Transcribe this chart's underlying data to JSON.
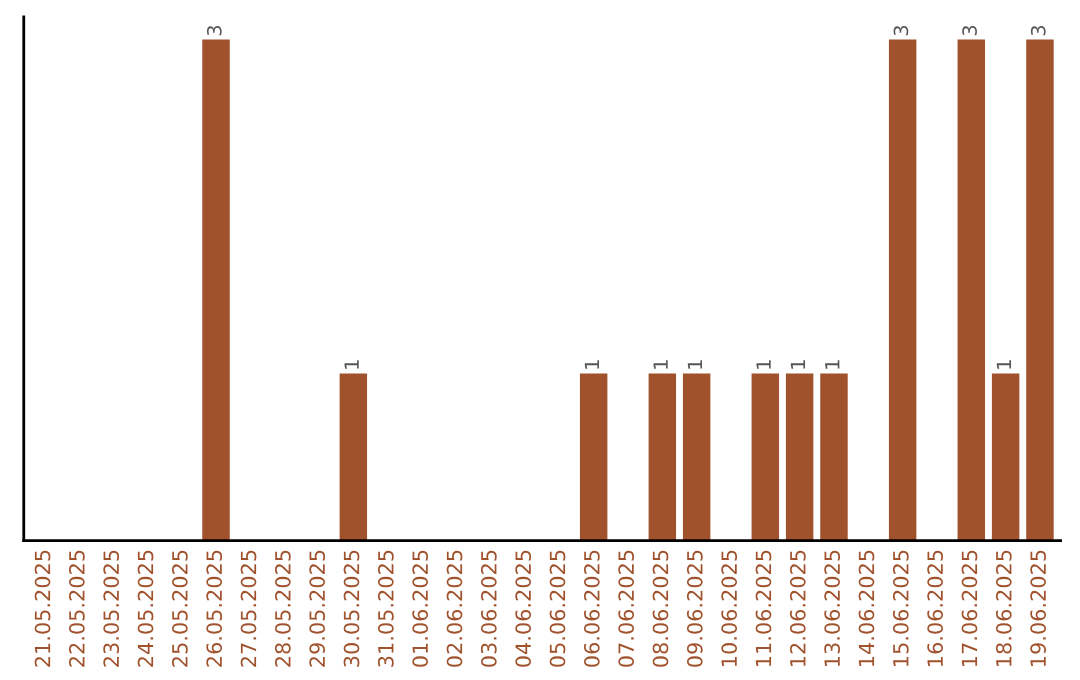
{
  "chart_data": {
    "type": "bar",
    "categories": [
      "21.05.2025",
      "22.05.2025",
      "23.05.2025",
      "24.05.2025",
      "25.05.2025",
      "26.05.2025",
      "27.05.2025",
      "28.05.2025",
      "29.05.2025",
      "30.05.2025",
      "31.05.2025",
      "01.06.2025",
      "02.06.2025",
      "03.06.2025",
      "04.06.2025",
      "05.06.2025",
      "06.06.2025",
      "07.06.2025",
      "08.06.2025",
      "09.06.2025",
      "10.06.2025",
      "11.06.2025",
      "12.06.2025",
      "13.06.2025",
      "14.06.2025",
      "15.06.2025",
      "16.06.2025",
      "17.06.2025",
      "18.06.2025",
      "19.06.2025"
    ],
    "values": [
      0,
      0,
      0,
      0,
      0,
      3,
      0,
      0,
      0,
      1,
      0,
      0,
      0,
      0,
      0,
      0,
      1,
      0,
      1,
      1,
      0,
      1,
      1,
      1,
      0,
      3,
      0,
      3,
      1,
      3
    ],
    "value_labels": [
      null,
      null,
      null,
      null,
      null,
      "3",
      null,
      null,
      null,
      "1",
      null,
      null,
      null,
      null,
      null,
      null,
      "1",
      null,
      "1",
      "1",
      null,
      "1",
      "1",
      "1",
      null,
      "3",
      null,
      "3",
      "1",
      "3"
    ],
    "color": "#a0522d",
    "tick_labels": "x",
    "grid": false,
    "legend": false
  }
}
